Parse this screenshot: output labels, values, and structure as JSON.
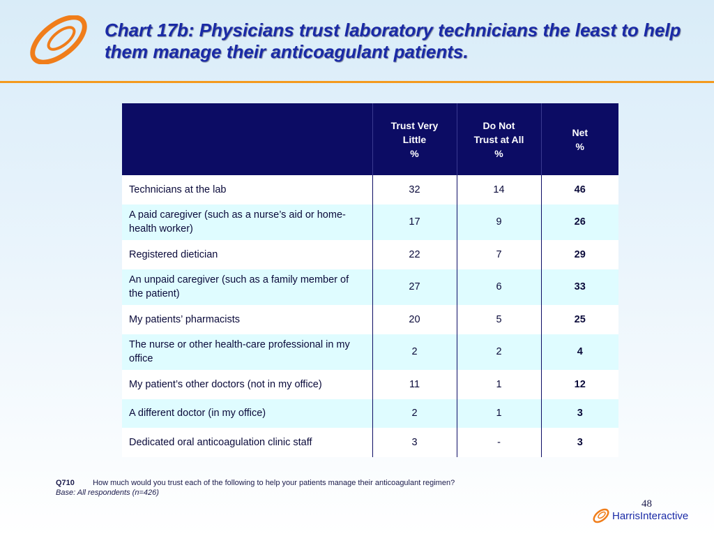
{
  "title": "Chart 17b: Physicians trust laboratory technicians the least to help them manage their anticoagulant patients.",
  "colors": {
    "title": "#1a2aa6",
    "accent": "#f39a1e",
    "header_bg": "#0c0c64",
    "row_alt": "#dffcff"
  },
  "table": {
    "headers": [
      {
        "lines": [
          "Trust Very",
          "Little",
          "%"
        ]
      },
      {
        "lines": [
          "Do Not",
          "Trust at All",
          "%"
        ]
      },
      {
        "lines": [
          "Net",
          "%"
        ]
      }
    ],
    "rows": [
      {
        "label": "Technicians at the lab",
        "trust_very_little": "32",
        "do_not_trust": "14",
        "net": "46"
      },
      {
        "label": "A paid caregiver (such as a nurse’s aid or home-health worker)",
        "trust_very_little": "17",
        "do_not_trust": "9",
        "net": "26"
      },
      {
        "label": "Registered dietician",
        "trust_very_little": "22",
        "do_not_trust": "7",
        "net": "29"
      },
      {
        "label": "An unpaid caregiver (such as a family member of the patient)",
        "trust_very_little": "27",
        "do_not_trust": "6",
        "net": "33"
      },
      {
        "label": "My patients’ pharmacists",
        "trust_very_little": "20",
        "do_not_trust": "5",
        "net": "25"
      },
      {
        "label": "The nurse or other health-care professional in my office",
        "trust_very_little": "2",
        "do_not_trust": "2",
        "net": "4"
      },
      {
        "label": "My patient’s other doctors (not in my office)",
        "trust_very_little": "11",
        "do_not_trust": "1",
        "net": "12"
      },
      {
        "label": "A different doctor (in my office)",
        "trust_very_little": "2",
        "do_not_trust": "1",
        "net": "3"
      },
      {
        "label": "Dedicated oral anticoagulation clinic staff",
        "trust_very_little": "3",
        "do_not_trust": "-",
        "net": "3"
      }
    ]
  },
  "footnote": {
    "question_id": "Q710",
    "question": "How much would you trust each of the following to help your patients manage their anticoagulant regimen?",
    "base": "Base:  All respondents (n=426)"
  },
  "page_number": "48",
  "brand": {
    "name_part1": "Harris",
    "name_part2": "Interactive",
    "logo_icon": "harris-swirl-logo-icon"
  }
}
